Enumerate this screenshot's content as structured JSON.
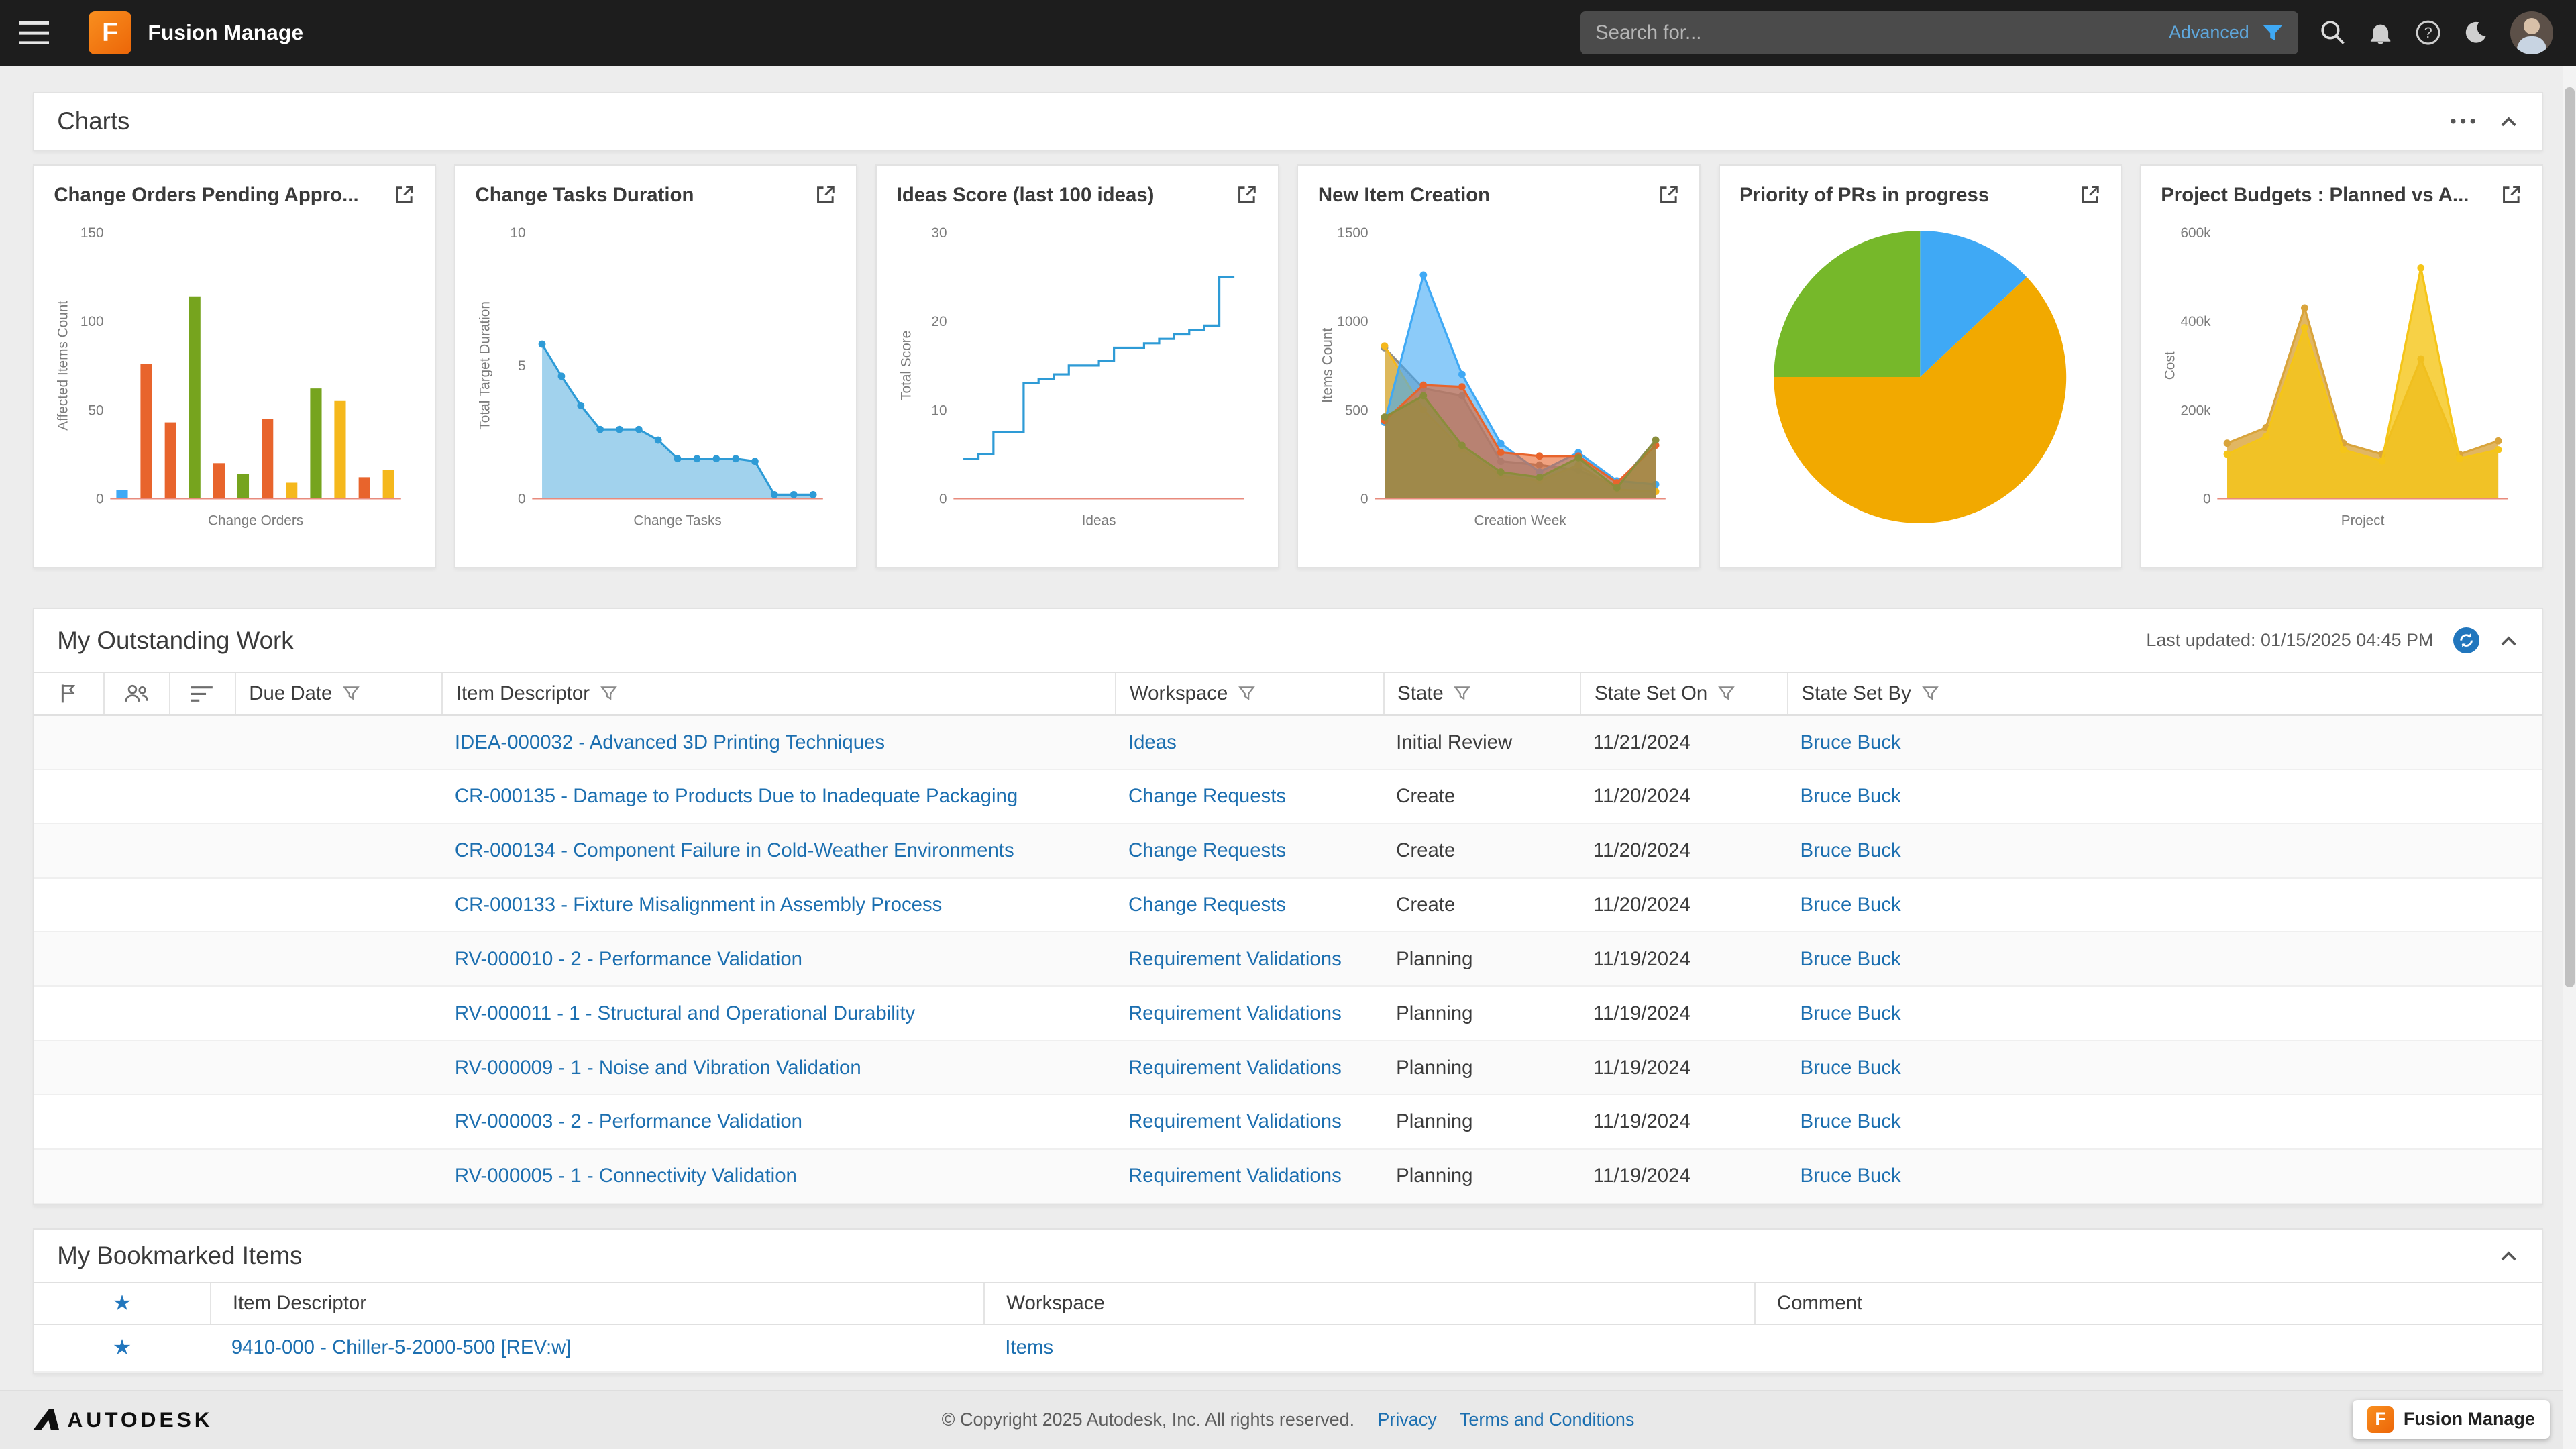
{
  "topbar": {
    "app_title": "Fusion Manage",
    "logo_letter": "F",
    "search_placeholder": "Search for...",
    "advanced_label": "Advanced"
  },
  "charts_section": {
    "title": "Charts"
  },
  "chart_data": [
    {
      "type": "bar",
      "title": "Change Orders Pending Appro...",
      "xlabel": "Change Orders",
      "ylabel": "Affected Items Count",
      "ylim": [
        0,
        150
      ],
      "yticks": [
        {
          "v": 0,
          "label": "0"
        },
        {
          "v": 50,
          "label": "50"
        },
        {
          "v": 100,
          "label": "100"
        },
        {
          "v": 150,
          "label": "150"
        }
      ],
      "bars": [
        {
          "value": 5,
          "color": "#3FA9F5"
        },
        {
          "value": 76,
          "color": "#E8642C"
        },
        {
          "value": 43,
          "color": "#E8642C"
        },
        {
          "value": 114,
          "color": "#76A41E"
        },
        {
          "value": 20,
          "color": "#E8642C"
        },
        {
          "value": 14,
          "color": "#76A41E"
        },
        {
          "value": 45,
          "color": "#E8642C"
        },
        {
          "value": 9,
          "color": "#F5B81C"
        },
        {
          "value": 62,
          "color": "#76A41E"
        },
        {
          "value": 55,
          "color": "#F5B81C"
        },
        {
          "value": 12,
          "color": "#E8642C"
        },
        {
          "value": 16,
          "color": "#F5B81C"
        }
      ]
    },
    {
      "type": "line",
      "title": "Change Tasks Duration",
      "xlabel": "Change Tasks",
      "ylabel": "Total Target Duration",
      "ylim": [
        0,
        10
      ],
      "yticks": [
        {
          "v": 0,
          "label": "0"
        },
        {
          "v": 5,
          "label": "5"
        },
        {
          "v": 10,
          "label": "10"
        }
      ],
      "color": "#2E9BD6",
      "fill_opacity": 0.45,
      "markers": true,
      "values": [
        5.8,
        4.6,
        3.5,
        2.6,
        2.6,
        2.6,
        2.2,
        1.5,
        1.5,
        1.5,
        1.5,
        1.4,
        0.15,
        0.15,
        0.15
      ]
    },
    {
      "type": "step",
      "title": "Ideas Score (last 100 ideas)",
      "xlabel": "Ideas",
      "ylabel": "Total Score",
      "ylim": [
        0,
        30
      ],
      "yticks": [
        {
          "v": 0,
          "label": "0"
        },
        {
          "v": 10,
          "label": "10"
        },
        {
          "v": 20,
          "label": "20"
        },
        {
          "v": 30,
          "label": "30"
        }
      ],
      "color": "#2E9BD6",
      "values": [
        4.5,
        5,
        7.5,
        7.5,
        13,
        13.5,
        14,
        15,
        15,
        15.5,
        17,
        17,
        17.5,
        18,
        18.5,
        19,
        19.5,
        25,
        25
      ]
    },
    {
      "type": "areas",
      "title": "New Item Creation",
      "xlabel": "Creation Week",
      "ylabel": "Items Count",
      "ylim": [
        0,
        1500
      ],
      "yticks": [
        {
          "v": 0,
          "label": "0"
        },
        {
          "v": 500,
          "label": "500"
        },
        {
          "v": 1000,
          "label": "1000"
        },
        {
          "v": 1500,
          "label": "1500"
        }
      ],
      "markers": true,
      "fill_opacity": 0.6,
      "series": [
        {
          "name": "series-gray",
          "color": "#8C8C8C",
          "values": [
            850,
            620,
            580,
            210,
            190,
            160,
            70,
            330
          ]
        },
        {
          "name": "series-yellow",
          "color": "#F5B81C",
          "values": [
            860,
            500,
            280,
            130,
            100,
            190,
            50,
            40
          ]
        },
        {
          "name": "series-blue",
          "color": "#3FA9F5",
          "values": [
            430,
            1260,
            700,
            310,
            150,
            260,
            100,
            80
          ]
        },
        {
          "name": "series-orange",
          "color": "#E8642C",
          "values": [
            440,
            640,
            630,
            260,
            240,
            240,
            90,
            300
          ]
        },
        {
          "name": "series-olive",
          "color": "#8A8D3A",
          "values": [
            460,
            580,
            300,
            150,
            120,
            230,
            60,
            330
          ]
        }
      ]
    },
    {
      "type": "pie",
      "title": "Priority of PRs in progress",
      "slices": [
        {
          "label": "slice-blue",
          "value": 13,
          "color": "#3FA9F5"
        },
        {
          "label": "slice-amber",
          "value": 62,
          "color": "#F2A900"
        },
        {
          "label": "slice-green",
          "value": 25,
          "color": "#76B82A"
        }
      ]
    },
    {
      "type": "areas",
      "title": "Project Budgets : Planned vs A...",
      "xlabel": "Project",
      "ylabel": "Cost",
      "ylim": [
        0,
        600
      ],
      "yticks": [
        {
          "v": 0,
          "label": "0"
        },
        {
          "v": 200,
          "label": "200k"
        },
        {
          "v": 400,
          "label": "400k"
        },
        {
          "v": 600,
          "label": "600k"
        }
      ],
      "markers": true,
      "fill_opacity": 0.8,
      "series": [
        {
          "name": "planned",
          "color": "#D9A43B",
          "values": [
            125,
            160,
            430,
            125,
            100,
            315,
            100,
            130
          ]
        },
        {
          "name": "actual",
          "color": "#F5C518",
          "values": [
            100,
            140,
            385,
            110,
            85,
            520,
            90,
            110
          ]
        }
      ]
    }
  ],
  "outstanding": {
    "title": "My Outstanding Work",
    "last_updated": "Last updated: 01/15/2025 04:45 PM",
    "columns": {
      "due_date": "Due Date",
      "item": "Item Descriptor",
      "workspace": "Workspace",
      "state": "State",
      "state_set_on": "State Set On",
      "state_set_by": "State Set By"
    },
    "rows": [
      {
        "due": "",
        "item": "IDEA-000032 - Advanced 3D Printing Techniques",
        "workspace": "Ideas",
        "state": "Initial Review",
        "state_set_on": "11/21/2024",
        "state_set_by": "Bruce Buck"
      },
      {
        "due": "",
        "item": "CR-000135 - Damage to Products Due to Inadequate Packaging",
        "workspace": "Change Requests",
        "state": "Create",
        "state_set_on": "11/20/2024",
        "state_set_by": "Bruce Buck"
      },
      {
        "due": "",
        "item": "CR-000134 - Component Failure in Cold-Weather Environments",
        "workspace": "Change Requests",
        "state": "Create",
        "state_set_on": "11/20/2024",
        "state_set_by": "Bruce Buck"
      },
      {
        "due": "",
        "item": "CR-000133 - Fixture Misalignment in Assembly Process",
        "workspace": "Change Requests",
        "state": "Create",
        "state_set_on": "11/20/2024",
        "state_set_by": "Bruce Buck"
      },
      {
        "due": "",
        "item": "RV-000010 - 2 - Performance Validation",
        "workspace": "Requirement Validations",
        "state": "Planning",
        "state_set_on": "11/19/2024",
        "state_set_by": "Bruce Buck"
      },
      {
        "due": "",
        "item": "RV-000011 - 1 - Structural and Operational Durability",
        "workspace": "Requirement Validations",
        "state": "Planning",
        "state_set_on": "11/19/2024",
        "state_set_by": "Bruce Buck"
      },
      {
        "due": "",
        "item": "RV-000009 - 1 - Noise and Vibration Validation",
        "workspace": "Requirement Validations",
        "state": "Planning",
        "state_set_on": "11/19/2024",
        "state_set_by": "Bruce Buck"
      },
      {
        "due": "",
        "item": "RV-000003 - 2 - Performance Validation",
        "workspace": "Requirement Validations",
        "state": "Planning",
        "state_set_on": "11/19/2024",
        "state_set_by": "Bruce Buck"
      },
      {
        "due": "",
        "item": "RV-000005 - 1 - Connectivity Validation",
        "workspace": "Requirement Validations",
        "state": "Planning",
        "state_set_on": "11/19/2024",
        "state_set_by": "Bruce Buck"
      }
    ]
  },
  "bookmarked": {
    "title": "My Bookmarked Items",
    "columns": {
      "item": "Item Descriptor",
      "workspace": "Workspace",
      "comment": "Comment"
    },
    "rows": [
      {
        "item": "9410-000 - Chiller-5-2000-500 [REV:w]",
        "workspace": "Items",
        "comment": ""
      }
    ]
  },
  "footer": {
    "brand": "AUTODESK",
    "copyright": "© Copyright 2025 Autodesk, Inc. All rights reserved.",
    "privacy_label": "Privacy",
    "terms_label": "Terms and Conditions",
    "badge_label": "Fusion Manage"
  },
  "colors": {
    "accent_orange": "#F0731D",
    "link_blue": "#1C6FB0",
    "star_blue": "#2176BD",
    "axis_baseline": "#E88B7D",
    "topbar_bg": "#1D1D1D"
  }
}
